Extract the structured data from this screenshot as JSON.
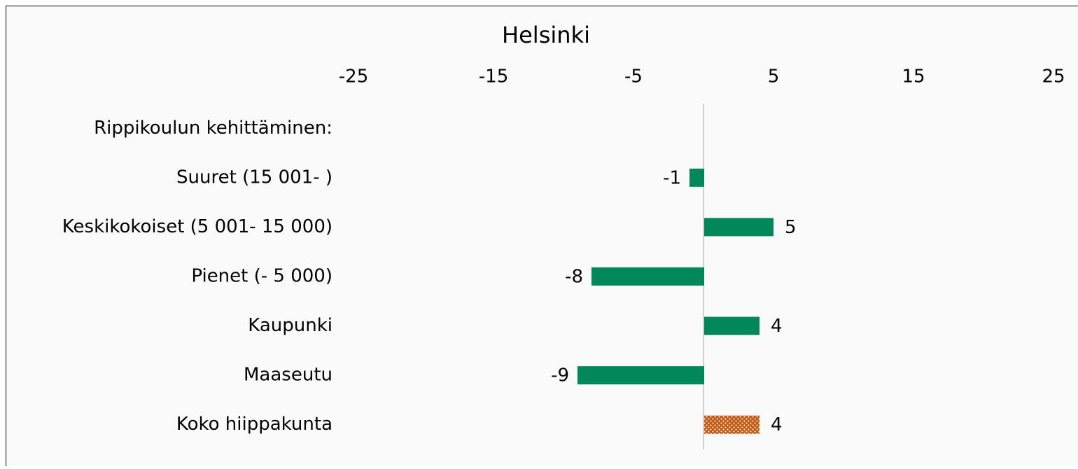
{
  "chart_data": {
    "type": "hbar",
    "title": "Helsinki",
    "categories": [
      "Rippikoulun kehittäminen:",
      "Suuret (15 001- )",
      "Keskikokoiset (5 001- 15 000)",
      "Pienet (- 5 000)",
      "Kaupunki",
      "Maaseutu",
      "Koko hiippakunta"
    ],
    "values": [
      null,
      -1,
      5,
      -8,
      4,
      -9,
      4
    ],
    "colors": [
      null,
      "#00875a",
      "#00875a",
      "#00875a",
      "#00875a",
      "#00875a",
      "#c55a11"
    ],
    "xlim": [
      -25,
      25
    ],
    "xticks": [
      -25,
      -15,
      -5,
      5,
      15,
      25
    ]
  }
}
